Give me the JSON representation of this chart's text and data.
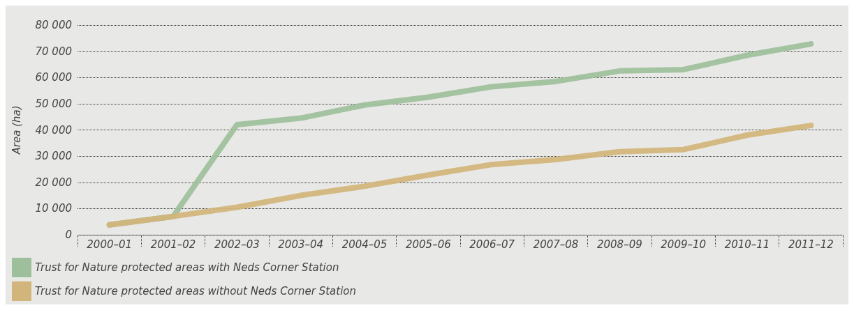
{
  "chart_data": {
    "type": "line",
    "ylabel": "Area (ha)",
    "categories": [
      "2000–01",
      "2001–02",
      "2002–03",
      "2003–04",
      "2004–05",
      "2005–06",
      "2006–07",
      "2007–08",
      "2008–09",
      "2009–10",
      "2010–11",
      "2011–12"
    ],
    "series": [
      {
        "name": "Trust for Nature protected areas with Neds Corner Station",
        "color": "#9dbf9b",
        "values": [
          3800,
          7000,
          42000,
          44500,
          49500,
          52500,
          56500,
          58500,
          62500,
          63000,
          68500,
          72800
        ]
      },
      {
        "name": "Trust for Nature protected areas without Neds Corner Station",
        "color": "#d1b57a",
        "values": [
          3800,
          7000,
          10500,
          15000,
          18500,
          22800,
          26800,
          28700,
          31700,
          32500,
          38000,
          41700
        ]
      }
    ],
    "ylim": [
      0,
      80000
    ],
    "yticks": [
      {
        "value": 0,
        "label": "0"
      },
      {
        "value": 10000,
        "label": "10 000"
      },
      {
        "value": 20000,
        "label": "20 000"
      },
      {
        "value": 30000,
        "label": "30 000"
      },
      {
        "value": 40000,
        "label": "40 000"
      },
      {
        "value": 50000,
        "label": "50 000"
      },
      {
        "value": 60000,
        "label": "60 000"
      },
      {
        "value": 70000,
        "label": "70 000"
      },
      {
        "value": 80000,
        "label": "80 000"
      }
    ],
    "grid": "y",
    "legend": "bottom left",
    "marker": "none",
    "line_style": "solid"
  }
}
